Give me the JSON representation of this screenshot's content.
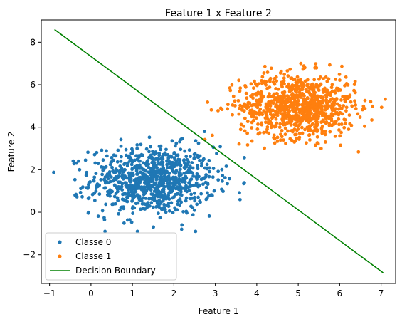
{
  "chart_data": {
    "type": "scatter",
    "title": "Feature 1 x Feature 2",
    "xlabel": "Feature 1",
    "ylabel": "Feature 2",
    "xlim": [
      -1.2,
      7.35
    ],
    "ylim": [
      -3.35,
      9.05
    ],
    "xticks": [
      -1,
      0,
      1,
      2,
      3,
      4,
      5,
      6,
      7
    ],
    "yticks": [
      -2,
      0,
      2,
      4,
      6,
      8
    ],
    "grid": false,
    "legend_position": "lower-left",
    "series": [
      {
        "name": "Classe 0",
        "type": "scatter",
        "color": "#1f77b4",
        "center": [
          1.5,
          1.5
        ],
        "spread": [
          0.75,
          0.8
        ],
        "count": 900,
        "x_range": [
          -0.9,
          3.7
        ],
        "y_range": [
          -0.9,
          3.8
        ]
      },
      {
        "name": "Classe 1",
        "type": "scatter",
        "color": "#ff7f0e",
        "center": [
          5.0,
          5.0
        ],
        "spread": [
          0.7,
          0.75
        ],
        "count": 900,
        "x_range": [
          2.4,
          7.1
        ],
        "y_range": [
          2.4,
          7.0
        ]
      },
      {
        "name": "Decision Boundary",
        "type": "line",
        "color": "#008000",
        "x": [
          -0.88,
          7.05
        ],
        "y": [
          8.6,
          -2.85
        ]
      }
    ]
  }
}
